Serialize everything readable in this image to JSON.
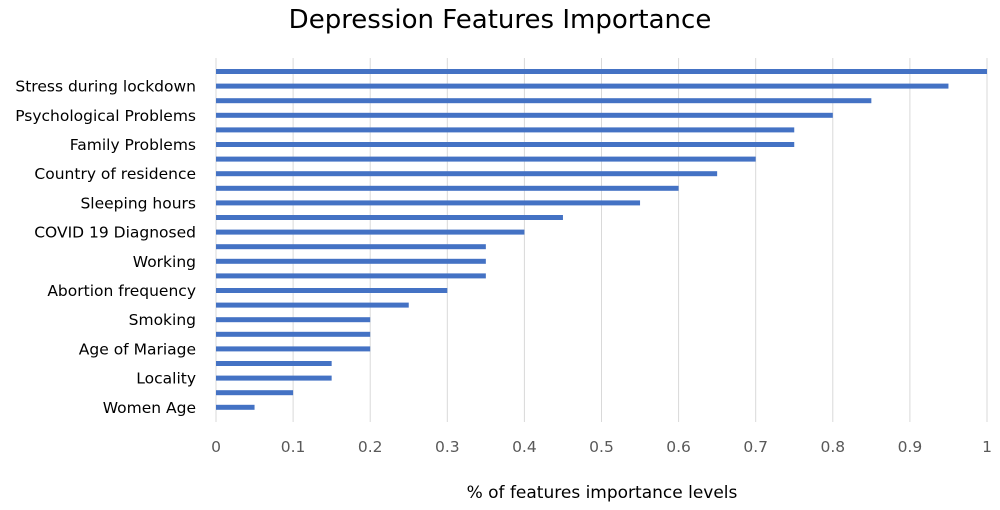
{
  "chart_data": {
    "type": "bar",
    "orientation": "horizontal",
    "title": "Depression Features Importance",
    "xlabel": "% of features importance levels",
    "ylabel": "",
    "xlim": [
      0,
      1
    ],
    "x_ticks": [
      "0",
      "0.1",
      "0.2",
      "0.3",
      "0.4",
      "0.5",
      "0.6",
      "0.7",
      "0.8",
      "0.9",
      "1"
    ],
    "grid": "vertical",
    "bar_color": "#4472c4",
    "categories": [
      "",
      "Stress during lockdown",
      "",
      "Psychological Problems",
      "",
      "Family Problems",
      "",
      "Country of residence",
      "",
      "Sleeping hours",
      "",
      "COVID 19 Diagnosed",
      "",
      "Working",
      "",
      "Abortion frequency",
      "",
      "Smoking",
      "",
      "Age of Mariage",
      "",
      "Locality",
      "",
      "Women Age"
    ],
    "values": [
      1.0,
      0.95,
      0.85,
      0.8,
      0.75,
      0.75,
      0.7,
      0.65,
      0.6,
      0.55,
      0.45,
      0.4,
      0.35,
      0.35,
      0.35,
      0.3,
      0.25,
      0.2,
      0.2,
      0.2,
      0.15,
      0.15,
      0.1,
      0.05
    ]
  }
}
